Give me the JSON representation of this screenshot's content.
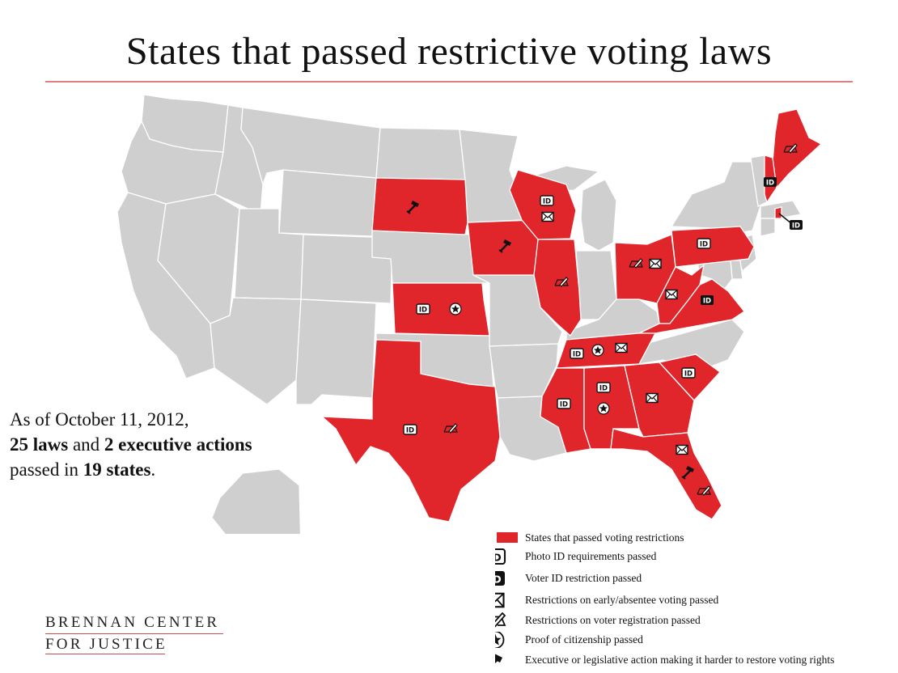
{
  "title": "States that passed restrictive voting laws",
  "summary": {
    "line1": "As of October 11, 2012,",
    "laws_count": "25 laws",
    "line2_mid": " and ",
    "actions_count": "2 executive actions",
    "line3_start": "passed in ",
    "states_count": "19 states",
    "line3_end": "."
  },
  "colors": {
    "restricted": "#e0262b",
    "other": "#cfcfcf",
    "border": "#ffffff",
    "icon_dark": "#111111"
  },
  "icon_text": "ID",
  "legend": [
    {
      "icon": "red-swatch",
      "label": "States that passed voting restrictions"
    },
    {
      "icon": "id-outline-icon",
      "label": "Photo ID requirements passed"
    },
    {
      "icon": "id-solid-icon",
      "label": "Voter ID restriction passed"
    },
    {
      "icon": "envelope-icon",
      "label": "Restrictions on early/absentee voting passed"
    },
    {
      "icon": "pen-form-icon",
      "label": "Restrictions on voter registration passed"
    },
    {
      "icon": "star-icon",
      "label": "Proof of citizenship passed"
    },
    {
      "icon": "gavel-icon",
      "label": "Executive or legislative action making it harder to restore voting rights"
    }
  ],
  "logo": {
    "line1": "BRENNAN CENTER",
    "line2": "FOR JUSTICE"
  },
  "states_with_restrictions": [
    {
      "name": "Texas",
      "restrictions": [
        "photo-id",
        "registration"
      ]
    },
    {
      "name": "Kansas",
      "restrictions": [
        "photo-id",
        "citizenship"
      ]
    },
    {
      "name": "South Dakota",
      "restrictions": [
        "restore-rights"
      ]
    },
    {
      "name": "Iowa",
      "restrictions": [
        "restore-rights"
      ]
    },
    {
      "name": "Wisconsin",
      "restrictions": [
        "photo-id",
        "early-absentee"
      ]
    },
    {
      "name": "Illinois",
      "restrictions": [
        "registration"
      ]
    },
    {
      "name": "Ohio",
      "restrictions": [
        "registration",
        "early-absentee"
      ]
    },
    {
      "name": "Pennsylvania",
      "restrictions": [
        "photo-id"
      ]
    },
    {
      "name": "West Virginia",
      "restrictions": [
        "early-absentee"
      ]
    },
    {
      "name": "Virginia",
      "restrictions": [
        "voter-id"
      ]
    },
    {
      "name": "Tennessee",
      "restrictions": [
        "photo-id",
        "citizenship",
        "early-absentee"
      ]
    },
    {
      "name": "Mississippi",
      "restrictions": [
        "photo-id"
      ]
    },
    {
      "name": "Alabama",
      "restrictions": [
        "photo-id",
        "citizenship"
      ]
    },
    {
      "name": "Georgia",
      "restrictions": [
        "early-absentee"
      ]
    },
    {
      "name": "South Carolina",
      "restrictions": [
        "photo-id"
      ]
    },
    {
      "name": "Florida",
      "restrictions": [
        "early-absentee",
        "restore-rights",
        "registration"
      ]
    },
    {
      "name": "Maine",
      "restrictions": [
        "registration"
      ]
    },
    {
      "name": "New Hampshire",
      "restrictions": [
        "voter-id"
      ]
    },
    {
      "name": "Rhode Island",
      "restrictions": [
        "voter-id"
      ]
    }
  ]
}
